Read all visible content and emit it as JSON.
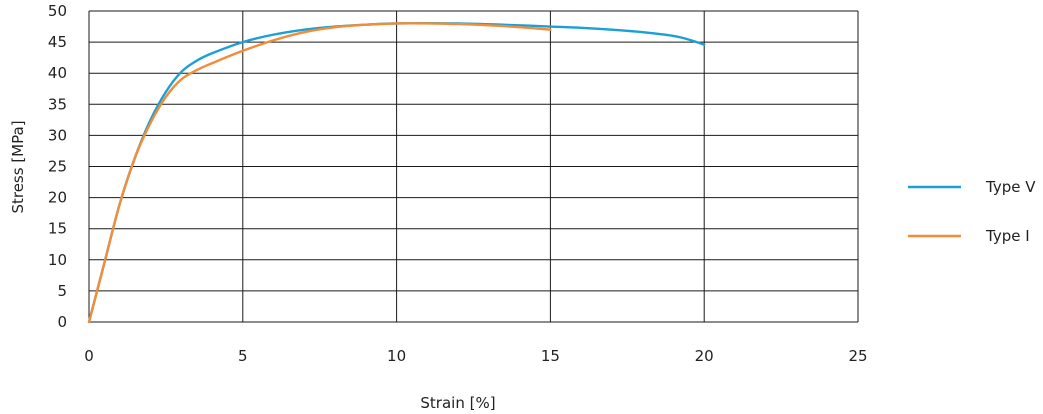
{
  "chart_data": {
    "type": "line",
    "xlabel": "Strain [%]",
    "ylabel": "Stress [MPa]",
    "xlim": [
      0,
      25
    ],
    "ylim": [
      0,
      50
    ],
    "xticks": [
      "0",
      "5",
      "10",
      "15",
      "20",
      "25"
    ],
    "yticks": [
      "0",
      "5",
      "10",
      "15",
      "20",
      "25",
      "30",
      "35",
      "40",
      "45",
      "50"
    ],
    "grid": true,
    "legend_position": "right",
    "series": [
      {
        "name": "Type V",
        "color": "#1a9fd6",
        "x": [
          0,
          0.5,
          1,
          1.5,
          2,
          2.5,
          3,
          3.5,
          4,
          5,
          6,
          7,
          8,
          9,
          10,
          12,
          14,
          15,
          16,
          17,
          18,
          19,
          19.5,
          20
        ],
        "y": [
          0,
          9.5,
          19,
          26.5,
          32.5,
          37,
          40.2,
          42,
          43.2,
          45,
          46.2,
          47,
          47.5,
          47.8,
          48,
          48,
          47.7,
          47.5,
          47.3,
          47,
          46.6,
          46,
          45.4,
          44.6
        ]
      },
      {
        "name": "Type I",
        "color": "#f28c38",
        "x": [
          0,
          0.5,
          1,
          1.5,
          2,
          2.5,
          3,
          3.5,
          4,
          5,
          6,
          7,
          8,
          9,
          10,
          11,
          12,
          13,
          14,
          15
        ],
        "y": [
          0,
          9.5,
          19,
          26.5,
          32,
          36.2,
          39,
          40.5,
          41.6,
          43.6,
          45.3,
          46.6,
          47.4,
          47.8,
          48,
          48,
          47.9,
          47.7,
          47.4,
          47
        ]
      }
    ]
  }
}
